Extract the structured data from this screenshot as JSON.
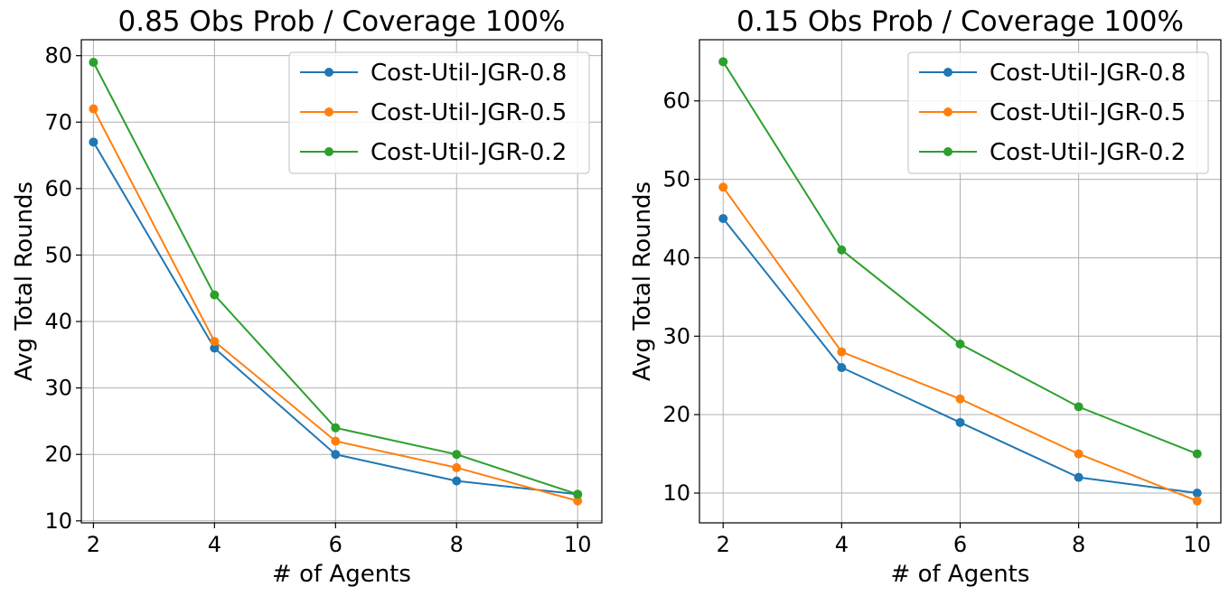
{
  "colors": {
    "series": [
      "#1f77b4",
      "#ff7f0e",
      "#2ca02c"
    ],
    "grid": "#b0b0b0",
    "axis": "#000000",
    "legend_border": "#cccccc"
  },
  "chart_data": [
    {
      "type": "line",
      "title": "0.85 Obs Prob / Coverage 100%",
      "xlabel": "# of Agents",
      "ylabel": "Avg Total Rounds",
      "x": [
        2,
        4,
        6,
        8,
        10
      ],
      "xticks": [
        2,
        4,
        6,
        8,
        10
      ],
      "xlim": [
        1.8,
        10.4
      ],
      "yticks": [
        10,
        20,
        30,
        40,
        50,
        60,
        70,
        80
      ],
      "ylim": [
        9.7,
        82.4
      ],
      "grid": true,
      "legend_position": "top-right",
      "series": [
        {
          "name": "Cost-Util-JGR-0.8",
          "values": [
            67,
            36,
            20,
            16,
            14
          ]
        },
        {
          "name": "Cost-Util-JGR-0.5",
          "values": [
            72,
            37,
            22,
            18,
            13
          ]
        },
        {
          "name": "Cost-Util-JGR-0.2",
          "values": [
            79,
            44,
            24,
            20,
            14
          ]
        }
      ]
    },
    {
      "type": "line",
      "title": "0.15 Obs Prob / Coverage 100%",
      "xlabel": "# of Agents",
      "ylabel": "Avg Total Rounds",
      "x": [
        2,
        4,
        6,
        8,
        10
      ],
      "xticks": [
        2,
        4,
        6,
        8,
        10
      ],
      "xlim": [
        1.6,
        10.4
      ],
      "yticks": [
        10,
        20,
        30,
        40,
        50,
        60
      ],
      "ylim": [
        6.2,
        67.8
      ],
      "grid": true,
      "legend_position": "top-right",
      "series": [
        {
          "name": "Cost-Util-JGR-0.8",
          "values": [
            45,
            26,
            19,
            12,
            10
          ]
        },
        {
          "name": "Cost-Util-JGR-0.5",
          "values": [
            49,
            28,
            22,
            15,
            9
          ]
        },
        {
          "name": "Cost-Util-JGR-0.2",
          "values": [
            65,
            41,
            29,
            21,
            15
          ]
        }
      ]
    }
  ]
}
